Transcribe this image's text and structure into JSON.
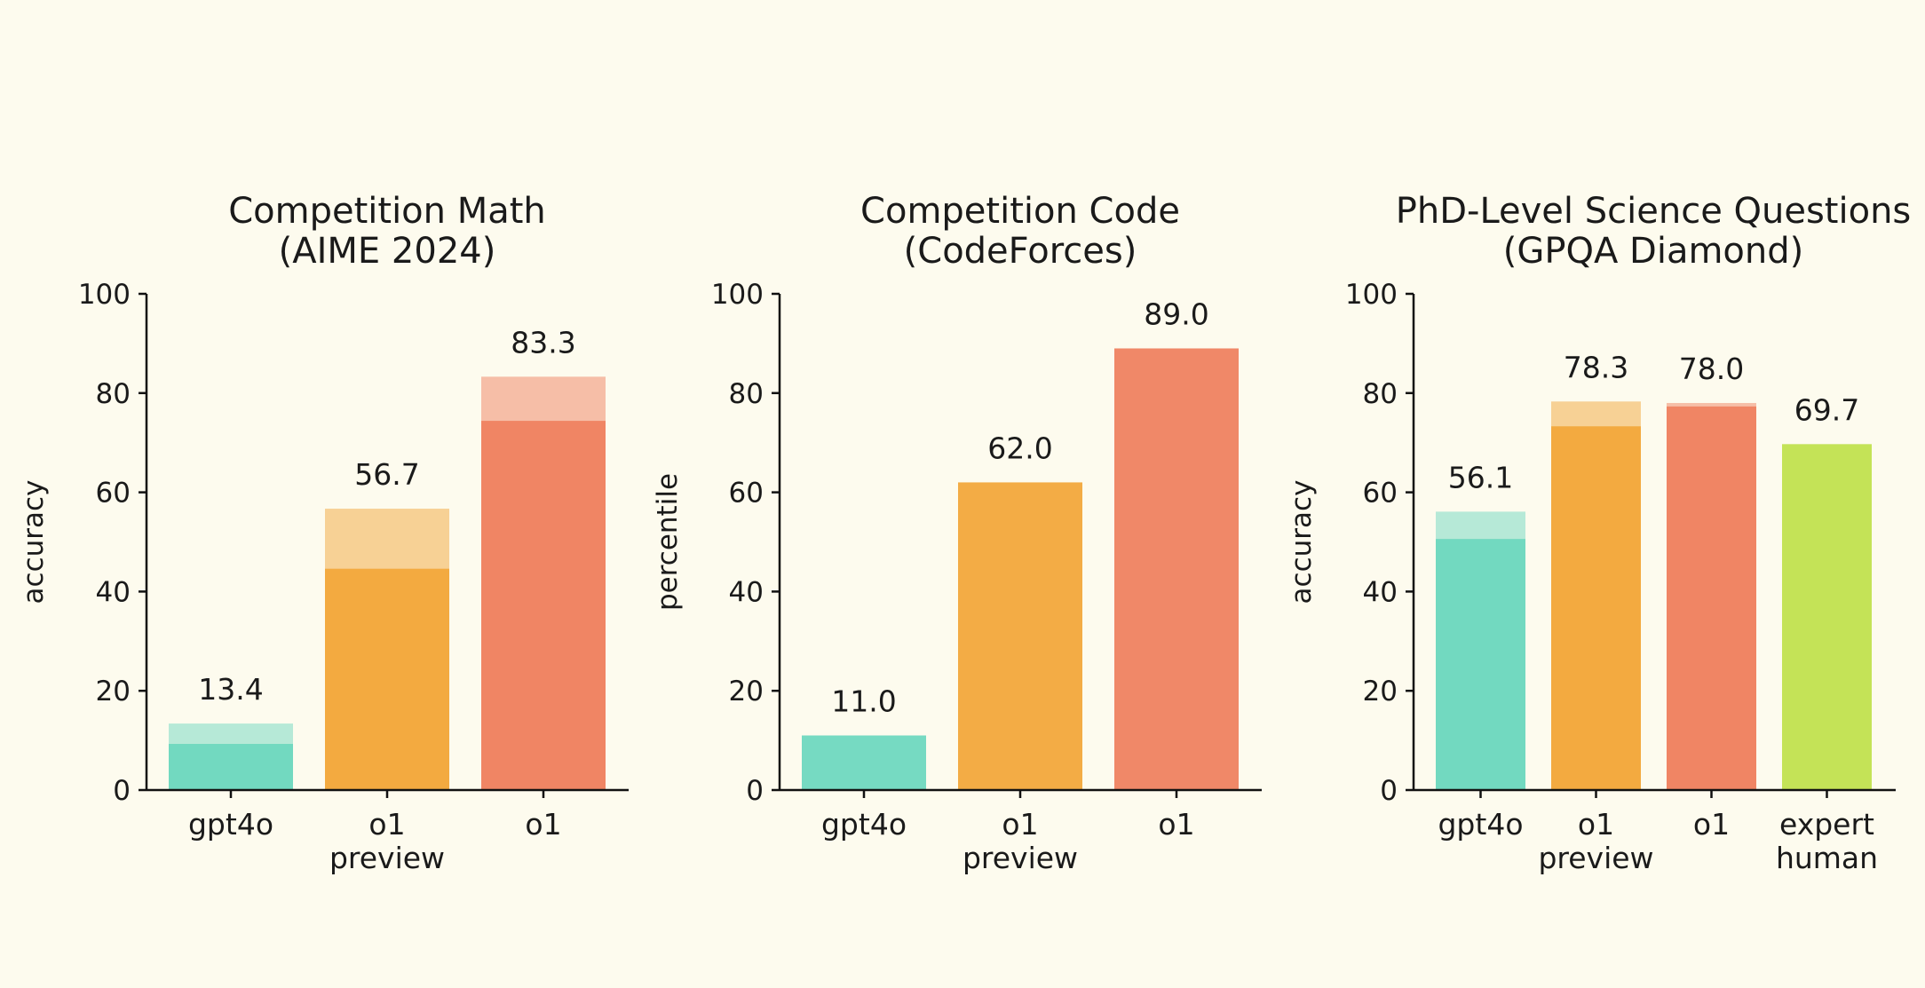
{
  "colors": {
    "background": "#fdfbee",
    "gpt4o": "#6fd8bf",
    "o1_preview": "#f2a83b",
    "o1": "#ef8260",
    "expert_human": "#c2e253"
  },
  "chart_data": [
    {
      "type": "bar",
      "title": [
        "Competition Math",
        "(AIME 2024)"
      ],
      "ylabel": "accuracy",
      "ylim": [
        0,
        100
      ],
      "yticks": [
        0,
        20,
        40,
        60,
        80,
        100
      ],
      "categories": [
        [
          "gpt4o"
        ],
        [
          "o1",
          "preview"
        ],
        [
          "o1"
        ]
      ],
      "series": [
        {
          "values": [
            9.3,
            44.6,
            74.4
          ]
        },
        {
          "values": [
            13.4,
            56.7,
            83.3
          ]
        }
      ],
      "value_labels": [
        "13.4",
        "56.7",
        "83.3"
      ],
      "colors": [
        "#6fd8bf",
        "#f2a83b",
        "#ef8260"
      ]
    },
    {
      "type": "bar",
      "title": [
        "Competition Code",
        "(CodeForces)"
      ],
      "ylabel": "percentile",
      "ylim": [
        0,
        100
      ],
      "yticks": [
        0,
        20,
        40,
        60,
        80,
        100
      ],
      "categories": [
        [
          "gpt4o"
        ],
        [
          "o1",
          "preview"
        ],
        [
          "o1"
        ]
      ],
      "series": [
        {
          "values": [
            11.0,
            62.0,
            89.0
          ]
        }
      ],
      "value_labels": [
        "11.0",
        "62.0",
        "89.0"
      ],
      "colors": [
        "#6fd8bf",
        "#f2a83b",
        "#ef8260"
      ]
    },
    {
      "type": "bar",
      "title": [
        "PhD-Level Science Questions",
        "(GPQA Diamond)"
      ],
      "ylabel": "accuracy",
      "ylim": [
        0,
        100
      ],
      "yticks": [
        0,
        20,
        40,
        60,
        80,
        100
      ],
      "categories": [
        [
          "gpt4o"
        ],
        [
          "o1",
          "preview"
        ],
        [
          "o1"
        ],
        [
          "expert",
          "human"
        ]
      ],
      "series": [
        {
          "values": [
            50.6,
            73.3,
            77.3,
            69.7
          ]
        },
        {
          "values": [
            56.1,
            78.3,
            78.0,
            69.7
          ]
        }
      ],
      "value_labels": [
        "56.1",
        "78.3",
        "78.0",
        "69.7"
      ],
      "colors": [
        "#6fd8bf",
        "#f2a83b",
        "#ef8260",
        "#c2e253"
      ]
    }
  ]
}
